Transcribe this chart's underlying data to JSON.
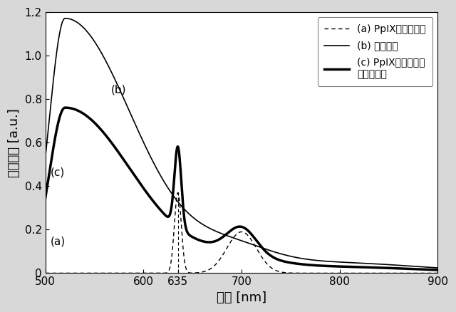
{
  "xlabel": "波長 [nm]",
  "ylabel": "蛍光強度 [a.u.]",
  "xlim": [
    500,
    900
  ],
  "ylim": [
    0,
    1.2
  ],
  "yticks": [
    0,
    0.2,
    0.4,
    0.6,
    0.8,
    1.0,
    1.2
  ],
  "xticks": [
    500,
    600,
    635,
    700,
    800,
    900
  ],
  "xtick_labels": [
    "500",
    "600",
    "635",
    "700",
    "800",
    "900"
  ],
  "legend_entries": [
    "(a) PpIX由来の蛍光",
    "(b) 自家蛍光",
    "(c) PpIX由来の蛍光\n＋自家蛍光"
  ],
  "label_a": "(a)",
  "label_b": "(b)",
  "label_c": "(c)",
  "bg_color": "#d8d8d8",
  "plot_bg_color": "#ffffff"
}
